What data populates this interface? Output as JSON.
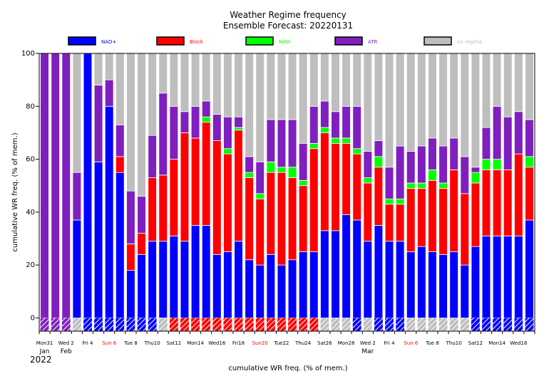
{
  "chart_data": {
    "type": "bar",
    "title": "Weather Regime frequency",
    "subtitle": "Ensemble Forecast: 20220131",
    "ylabel": "cumulative WR freq. (% of mem.)",
    "xlabel": "cumulative WR freq. (% of mem.)",
    "ylim": [
      -5,
      100
    ],
    "yticks": [
      0,
      20,
      40,
      60,
      80,
      100
    ],
    "grid": false,
    "legend_position": "top",
    "legend": [
      {
        "name": "NAO+",
        "color": "#0000ff"
      },
      {
        "name": "Block",
        "color": "#ff0000"
      },
      {
        "name": "NAO-",
        "color": "#00ff00"
      },
      {
        "name": "ATR",
        "color": "#7f1fbf"
      },
      {
        "name": "no regime",
        "color": "#bebebe"
      }
    ],
    "series": [
      {
        "name": "NAO+",
        "values": [
          0,
          0,
          0,
          37,
          100,
          59,
          80,
          55,
          18,
          24,
          29,
          29,
          31,
          29,
          35,
          35,
          24,
          25,
          29,
          22,
          20,
          24,
          20,
          22,
          25,
          25,
          33,
          33,
          39,
          37,
          29,
          35,
          29,
          29,
          25,
          27,
          25,
          24,
          25,
          20,
          27,
          31,
          31,
          31,
          31,
          37
        ]
      },
      {
        "name": "Block",
        "values": [
          0,
          0,
          0,
          0,
          0,
          0,
          0,
          6,
          10,
          8,
          24,
          25,
          29,
          41,
          33,
          39,
          43,
          37,
          42,
          31,
          25,
          31,
          35,
          31,
          25,
          39,
          37,
          33,
          27,
          25,
          22,
          22,
          14,
          14,
          24,
          22,
          27,
          25,
          31,
          27,
          24,
          25,
          25,
          25,
          31,
          20
        ]
      },
      {
        "name": "NAO-",
        "values": [
          0,
          0,
          0,
          0,
          0,
          0,
          0,
          0,
          0,
          0,
          0,
          0,
          0,
          0,
          0,
          2,
          0,
          2,
          1,
          2,
          2,
          4,
          2,
          4,
          2,
          2,
          2,
          2,
          2,
          2,
          2,
          4,
          2,
          2,
          2,
          2,
          4,
          2,
          0,
          0,
          4,
          4,
          4,
          0,
          0,
          4
        ]
      },
      {
        "name": "ATR",
        "values": [
          100,
          100,
          100,
          18,
          0,
          29,
          10,
          12,
          20,
          14,
          16,
          31,
          20,
          8,
          12,
          6,
          10,
          12,
          4,
          6,
          12,
          16,
          18,
          18,
          14,
          14,
          10,
          10,
          12,
          16,
          10,
          6,
          12,
          20,
          12,
          14,
          12,
          14,
          12,
          14,
          2,
          12,
          20,
          20,
          16,
          14
        ]
      },
      {
        "name": "no regime",
        "values": [
          0,
          0,
          0,
          45,
          0,
          12,
          10,
          27,
          52,
          54,
          31,
          15,
          20,
          22,
          20,
          18,
          23,
          24,
          24,
          39,
          41,
          25,
          25,
          25,
          34,
          20,
          18,
          22,
          20,
          20,
          37,
          33,
          43,
          35,
          37,
          35,
          32,
          35,
          32,
          39,
          43,
          28,
          20,
          24,
          22,
          25
        ]
      }
    ],
    "bottom_strip": [
      "ATR",
      "ATR",
      "ATR",
      "no regime",
      "NAO+",
      "NAO+",
      "NAO+",
      "NAO+",
      "NAO+",
      "NAO+",
      "NAO+",
      "no regime",
      "Block",
      "Block",
      "Block",
      "Block",
      "Block",
      "Block",
      "Block",
      "Block",
      "Block",
      "Block",
      "Block",
      "Block",
      "Block",
      "Block",
      "no regime",
      "no regime",
      "no regime",
      "NAO+",
      "no regime",
      "NAO+",
      "NAO+",
      "NAO+",
      "no regime",
      "no regime",
      "no regime",
      "no regime",
      "no regime",
      "no regime",
      "NAO+",
      "NAO+",
      "NAO+",
      "NAO+",
      "NAO+",
      "NAO+"
    ],
    "x_tick_labels": [
      {
        "index": 0,
        "label": "Mon31",
        "color": "#000000"
      },
      {
        "index": 2,
        "label": "Wed 2",
        "color": "#000000"
      },
      {
        "index": 4,
        "label": "Fri 4",
        "color": "#000000"
      },
      {
        "index": 6,
        "label": "Sun 6",
        "color": "#ff0000"
      },
      {
        "index": 8,
        "label": "Tue 8",
        "color": "#000000"
      },
      {
        "index": 10,
        "label": "Thu10",
        "color": "#000000"
      },
      {
        "index": 12,
        "label": "Sat12",
        "color": "#000000"
      },
      {
        "index": 14,
        "label": "Mon14",
        "color": "#000000"
      },
      {
        "index": 16,
        "label": "Wed16",
        "color": "#000000"
      },
      {
        "index": 18,
        "label": "Fri18",
        "color": "#000000"
      },
      {
        "index": 20,
        "label": "Sun20",
        "color": "#ff0000"
      },
      {
        "index": 22,
        "label": "Tue22",
        "color": "#000000"
      },
      {
        "index": 24,
        "label": "Thu24",
        "color": "#000000"
      },
      {
        "index": 26,
        "label": "Sat26",
        "color": "#000000"
      },
      {
        "index": 28,
        "label": "Mon28",
        "color": "#000000"
      },
      {
        "index": 30,
        "label": "Wed 2",
        "color": "#000000"
      },
      {
        "index": 32,
        "label": "Fri 4",
        "color": "#000000"
      },
      {
        "index": 34,
        "label": "Sun 6",
        "color": "#ff0000"
      },
      {
        "index": 36,
        "label": "Tue 8",
        "color": "#000000"
      },
      {
        "index": 38,
        "label": "Thu10",
        "color": "#000000"
      },
      {
        "index": 40,
        "label": "Sat12",
        "color": "#000000"
      },
      {
        "index": 42,
        "label": "Mon14",
        "color": "#000000"
      },
      {
        "index": 44,
        "label": "Wed16",
        "color": "#000000"
      }
    ],
    "month_labels": [
      {
        "index": 0,
        "label": "Jan"
      },
      {
        "index": 2,
        "label": "Feb"
      },
      {
        "index": 30,
        "label": "Mar"
      }
    ],
    "year_label": "2022"
  }
}
